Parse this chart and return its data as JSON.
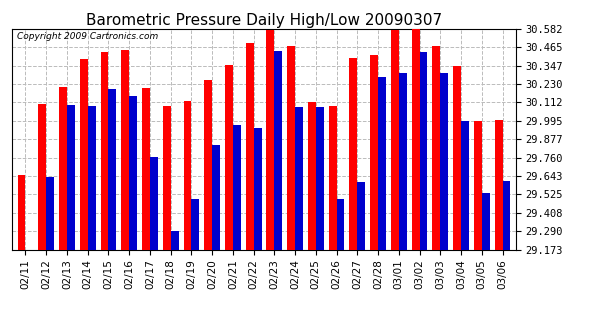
{
  "title": "Barometric Pressure Daily High/Low 20090307",
  "copyright": "Copyright 2009 Cartronics.com",
  "categories": [
    "02/11",
    "02/12",
    "02/13",
    "02/14",
    "02/15",
    "02/16",
    "02/17",
    "02/18",
    "02/19",
    "02/20",
    "02/21",
    "02/22",
    "02/23",
    "02/24",
    "02/25",
    "02/26",
    "02/27",
    "02/28",
    "03/01",
    "03/02",
    "03/03",
    "03/04",
    "03/05",
    "03/06"
  ],
  "highs": [
    29.65,
    30.1,
    30.21,
    30.39,
    30.435,
    30.445,
    30.205,
    30.09,
    30.12,
    30.255,
    30.35,
    30.49,
    30.572,
    30.475,
    30.112,
    30.09,
    30.395,
    30.415,
    30.572,
    30.58,
    30.47,
    30.345,
    29.993,
    29.997
  ],
  "lows": [
    29.173,
    29.638,
    30.095,
    30.09,
    30.198,
    30.155,
    29.762,
    29.29,
    29.495,
    29.842,
    29.968,
    29.952,
    30.44,
    30.082,
    30.082,
    29.495,
    29.603,
    30.272,
    30.302,
    30.432,
    30.302,
    29.992,
    29.532,
    29.612
  ],
  "ymin": 29.173,
  "ymax": 30.582,
  "yticks": [
    29.173,
    29.29,
    29.408,
    29.525,
    29.643,
    29.76,
    29.877,
    29.995,
    30.112,
    30.23,
    30.347,
    30.465,
    30.582
  ],
  "bar_width": 0.38,
  "high_color": "#FF0000",
  "low_color": "#0000CC",
  "grid_color": "#BBBBBB",
  "bg_color": "#FFFFFF",
  "title_fontsize": 11,
  "tick_fontsize": 7.5
}
